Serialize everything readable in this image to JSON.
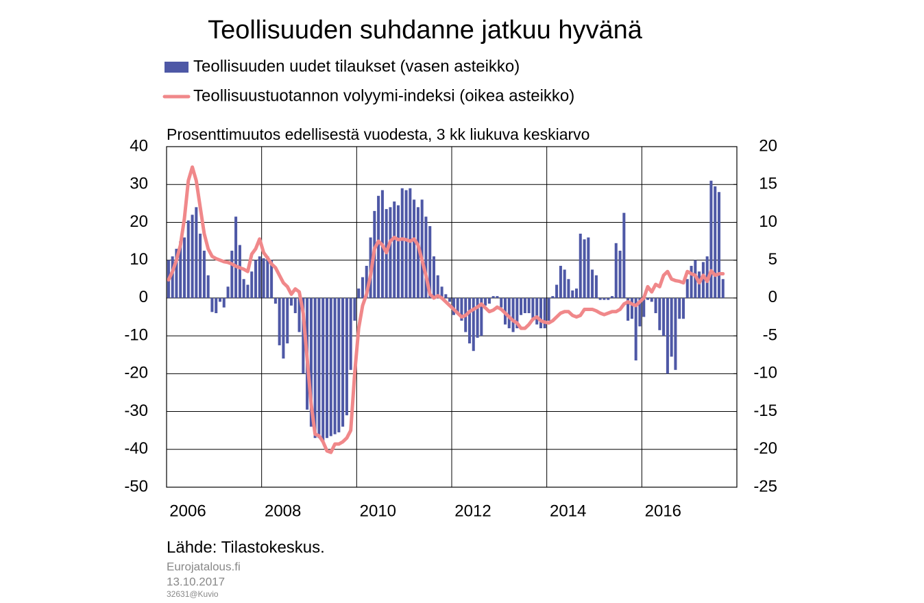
{
  "chart_data": {
    "type": "combo",
    "title": "Teollisuuden suhdanne jatkuu hyvänä",
    "subtitle": "Prosenttimuutos edellisestä vuodesta, 3 kk liukuva keskiarvo",
    "source": "Lähde: Tilastokeskus.",
    "notes": [
      "Eurojatalous.fi",
      "13.10.2017",
      "32631@Kuvio"
    ],
    "x": [
      2006.042,
      2006.125,
      2006.208,
      2006.292,
      2006.375,
      2006.458,
      2006.542,
      2006.625,
      2006.708,
      2006.792,
      2006.875,
      2006.958,
      2007.042,
      2007.125,
      2007.208,
      2007.292,
      2007.375,
      2007.458,
      2007.542,
      2007.625,
      2007.708,
      2007.792,
      2007.875,
      2007.958,
      2008.042,
      2008.125,
      2008.208,
      2008.292,
      2008.375,
      2008.458,
      2008.542,
      2008.625,
      2008.708,
      2008.792,
      2008.875,
      2008.958,
      2009.042,
      2009.125,
      2009.208,
      2009.292,
      2009.375,
      2009.458,
      2009.542,
      2009.625,
      2009.708,
      2009.792,
      2009.875,
      2009.958,
      2010.042,
      2010.125,
      2010.208,
      2010.292,
      2010.375,
      2010.458,
      2010.542,
      2010.625,
      2010.708,
      2010.792,
      2010.875,
      2010.958,
      2011.042,
      2011.125,
      2011.208,
      2011.292,
      2011.375,
      2011.458,
      2011.542,
      2011.625,
      2011.708,
      2011.792,
      2011.875,
      2011.958,
      2012.042,
      2012.125,
      2012.208,
      2012.292,
      2012.375,
      2012.458,
      2012.542,
      2012.625,
      2012.708,
      2012.792,
      2012.875,
      2012.958,
      2013.042,
      2013.125,
      2013.208,
      2013.292,
      2013.375,
      2013.458,
      2013.542,
      2013.625,
      2013.708,
      2013.792,
      2013.875,
      2013.958,
      2014.042,
      2014.125,
      2014.208,
      2014.292,
      2014.375,
      2014.458,
      2014.542,
      2014.625,
      2014.708,
      2014.792,
      2014.875,
      2014.958,
      2015.042,
      2015.125,
      2015.208,
      2015.292,
      2015.375,
      2015.458,
      2015.542,
      2015.625,
      2015.708,
      2015.792,
      2015.875,
      2015.958,
      2016.042,
      2016.125,
      2016.208,
      2016.292,
      2016.375,
      2016.458,
      2016.542,
      2016.625,
      2016.708,
      2016.792,
      2016.875,
      2016.958,
      2017.042,
      2017.125,
      2017.208,
      2017.292,
      2017.375,
      2017.458,
      2017.542,
      2017.625,
      2017.708
    ],
    "series": [
      {
        "name": "Teollisuuden uudet tilaukset (vasen asteikko)",
        "type": "bar",
        "color": "#4e58a6",
        "values": [
          10,
          11,
          13,
          15,
          16,
          20.5,
          22,
          24,
          17,
          12.5,
          6,
          -3.7,
          -4,
          -1,
          -2.5,
          3,
          12.5,
          21.5,
          14,
          5,
          3.5,
          7,
          10,
          11,
          10.5,
          11,
          10,
          -1.5,
          -12.5,
          -16,
          -12,
          -2,
          -4,
          -9,
          -20,
          -29.5,
          -34,
          -37,
          -37,
          -38,
          -37,
          -36.5,
          -36,
          -35.5,
          -34,
          -31,
          -19,
          -6,
          2.5,
          5.5,
          8.5,
          16,
          23,
          27,
          28.5,
          23.5,
          24,
          25.5,
          24.5,
          29,
          28.5,
          29,
          26,
          24,
          26,
          21.5,
          19,
          11,
          6,
          3,
          1,
          -1,
          -4.5,
          -4,
          -6,
          -9,
          -12,
          -14,
          -10.5,
          -10,
          -2,
          -1.5,
          0.5,
          0.5,
          -2.5,
          -7,
          -8,
          -9,
          -8,
          -4.5,
          -4,
          -4,
          -6,
          -7,
          -8,
          -8,
          -6,
          0.5,
          3.5,
          8.5,
          7.5,
          5,
          2,
          2.5,
          17,
          15.5,
          16,
          7.5,
          6,
          -0.5,
          -0.5,
          -0.5,
          0.5,
          14.5,
          12.5,
          22.5,
          -6,
          -5.5,
          -16.5,
          -7.5,
          -5,
          -0.5,
          -1,
          -4,
          -8.5,
          -10,
          -20,
          -15.5,
          -19,
          -5.5,
          -5.5,
          5,
          8.5,
          10,
          7,
          9.5,
          11,
          31,
          29.5,
          28,
          5
        ]
      },
      {
        "name": "Teollisuustuotannon volyymi-indeksi (oikea asteikko)",
        "type": "line",
        "axis": "y2",
        "color": "#f0888a",
        "values": [
          2.4,
          3.5,
          5,
          7,
          10.5,
          15.5,
          17.3,
          15.5,
          12,
          8.5,
          6.5,
          5.5,
          5.2,
          5,
          4.8,
          4.7,
          4.5,
          4.2,
          4,
          3.8,
          3.5,
          5.8,
          6.5,
          7.8,
          6,
          5.3,
          4.5,
          4,
          3,
          2,
          1.5,
          0.5,
          1.2,
          0.8,
          -2,
          -8,
          -14,
          -18,
          -18.2,
          -19,
          -20.2,
          -20.4,
          -19.3,
          -19.3,
          -19,
          -18.5,
          -17.5,
          -10,
          -4,
          -1,
          0.5,
          3,
          6.5,
          7.5,
          7,
          6,
          7.5,
          8,
          7.7,
          7.8,
          7.7,
          7.5,
          7.8,
          7,
          5,
          3,
          0.5,
          0,
          0.3,
          0,
          -0.5,
          -1,
          -1.5,
          -2,
          -2.5,
          -2.3,
          -1.8,
          -1.5,
          -1.2,
          -0.8,
          -1.3,
          -1.8,
          -1.6,
          -1.2,
          -1.5,
          -2,
          -2.5,
          -3,
          -3.3,
          -4,
          -4,
          -3.5,
          -2.8,
          -2.5,
          -3,
          -3.2,
          -3.3,
          -3,
          -2.5,
          -2,
          -1.8,
          -1.8,
          -2.3,
          -2.5,
          -2.3,
          -1.5,
          -1.5,
          -1.5,
          -1.7,
          -2,
          -2.2,
          -2,
          -1.8,
          -1.8,
          -1.5,
          -0.8,
          -0.5,
          -0.8,
          -1,
          -0.5,
          0,
          1.5,
          0.8,
          1.8,
          1.5,
          3,
          3.5,
          2.5,
          2.3,
          2.2,
          2,
          3.5,
          3.2,
          3,
          2,
          3,
          2.2,
          3.6,
          3,
          3.2,
          3.2
        ]
      }
    ],
    "xlim": [
      2006,
      2018
    ],
    "xticks": [
      2006,
      2008,
      2010,
      2012,
      2014,
      2016
    ],
    "ylim": [
      -50,
      40
    ],
    "yticks": [
      -50,
      -40,
      -30,
      -20,
      -10,
      0,
      10,
      20,
      30,
      40
    ],
    "y2lim": [
      -25,
      20
    ],
    "y2ticks": [
      -25,
      -20,
      -15,
      -10,
      -5,
      0,
      5,
      10,
      15,
      20
    ],
    "grid": true
  }
}
